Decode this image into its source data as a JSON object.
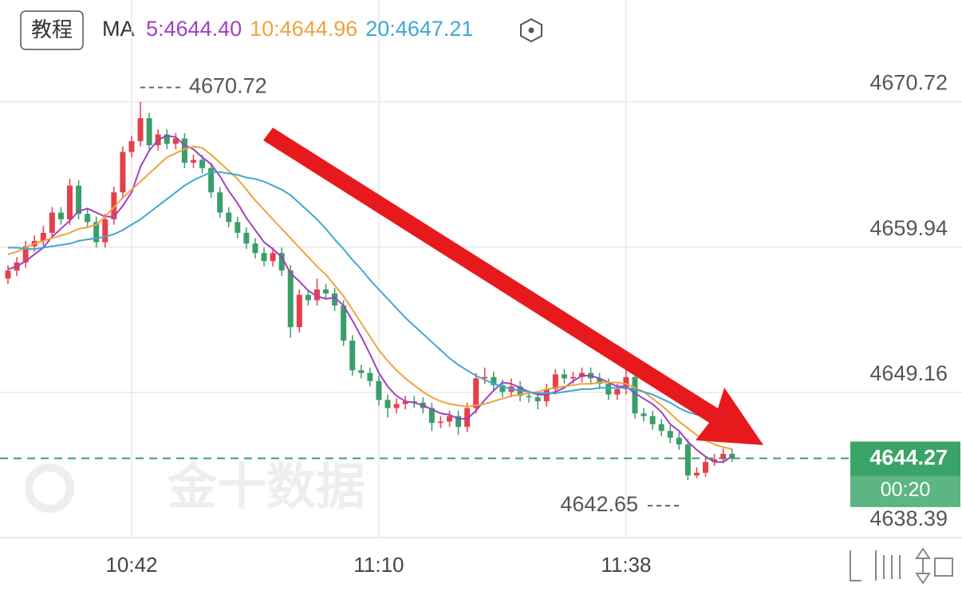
{
  "toolbar": {
    "button": "教程",
    "watermark": "金十数据"
  },
  "chart_data": {
    "type": "candlestick",
    "ma_label": "MA",
    "categories": [
      null,
      null,
      null,
      null,
      null,
      null,
      null,
      null,
      null,
      null,
      null,
      null,
      null,
      null,
      "10:42",
      null,
      null,
      null,
      null,
      null,
      null,
      null,
      null,
      null,
      null,
      null,
      null,
      null,
      null,
      null,
      null,
      null,
      null,
      null,
      null,
      null,
      null,
      null,
      null,
      null,
      null,
      null,
      "11:10",
      null,
      null,
      null,
      null,
      null,
      null,
      null,
      null,
      null,
      null,
      null,
      null,
      null,
      null,
      null,
      null,
      null,
      null,
      null,
      null,
      null,
      null,
      null,
      null,
      null,
      null,
      null,
      "11:38",
      null,
      null,
      null,
      null,
      null,
      null,
      null,
      null,
      null,
      null,
      null,
      null
    ],
    "candles": [
      [
        4657.6,
        4658.6,
        4657.2,
        4658.2
      ],
      [
        4658.2,
        4659.2,
        4657.8,
        4658.8
      ],
      [
        4658.8,
        4660.4,
        4658.4,
        4660.0
      ],
      [
        4660.0,
        4660.8,
        4659.6,
        4660.4
      ],
      [
        4660.4,
        4661.5,
        4660.0,
        4661.0
      ],
      [
        4661.0,
        4662.9,
        4660.6,
        4662.5
      ],
      [
        4662.5,
        4662.9,
        4661.6,
        4662.0
      ],
      [
        4662.0,
        4665.0,
        4661.6,
        4664.5
      ],
      [
        4664.5,
        4664.9,
        4662.0,
        4662.4
      ],
      [
        4662.4,
        4662.8,
        4661.4,
        4661.8
      ],
      [
        4661.8,
        4662.2,
        4659.9,
        4660.3
      ],
      [
        4660.3,
        4662.4,
        4659.9,
        4662.0
      ],
      [
        4662.0,
        4664.4,
        4661.6,
        4664.0
      ],
      [
        4664.0,
        4667.4,
        4663.6,
        4667.0
      ],
      [
        4667.0,
        4668.2,
        4666.6,
        4667.8
      ],
      [
        4667.8,
        4670.72,
        4667.4,
        4669.5
      ],
      [
        4669.5,
        4669.9,
        4667.1,
        4667.5
      ],
      [
        4667.5,
        4668.7,
        4667.1,
        4668.3
      ],
      [
        4668.3,
        4668.7,
        4667.2,
        4667.6
      ],
      [
        4667.6,
        4668.4,
        4667.2,
        4668.0
      ],
      [
        4668.0,
        4668.4,
        4665.8,
        4666.2
      ],
      [
        4666.2,
        4666.8,
        4665.8,
        4666.4
      ],
      [
        4666.4,
        4666.8,
        4665.4,
        4665.8
      ],
      [
        4665.8,
        4666.2,
        4663.6,
        4664.0
      ],
      [
        4664.0,
        4664.4,
        4662.1,
        4662.5
      ],
      [
        4662.5,
        4662.9,
        4661.4,
        4661.8
      ],
      [
        4661.8,
        4662.2,
        4660.6,
        4661.0
      ],
      [
        4661.0,
        4661.4,
        4659.8,
        4660.2
      ],
      [
        4660.2,
        4660.6,
        4659.1,
        4659.5
      ],
      [
        4659.5,
        4659.9,
        4658.5,
        4658.9
      ],
      [
        4658.9,
        4659.9,
        4658.5,
        4659.5
      ],
      [
        4659.5,
        4659.9,
        4657.8,
        4658.2
      ],
      [
        4658.2,
        4658.6,
        4653.2,
        4654.0
      ],
      [
        4654.0,
        4656.8,
        4653.6,
        4656.4
      ],
      [
        4656.4,
        4656.8,
        4655.6,
        4656.0
      ],
      [
        4656.0,
        4657.6,
        4655.6,
        4656.8
      ],
      [
        4656.8,
        4657.2,
        4656.1,
        4656.5
      ],
      [
        4656.5,
        4656.9,
        4655.2,
        4655.6
      ],
      [
        4655.6,
        4656.0,
        4652.6,
        4653.0
      ],
      [
        4653.0,
        4653.4,
        4650.4,
        4650.8
      ],
      [
        4650.8,
        4651.2,
        4650.2,
        4650.6
      ],
      [
        4650.6,
        4651.0,
        4649.6,
        4650.0
      ],
      [
        4650.0,
        4650.4,
        4648.2,
        4648.6
      ],
      [
        4648.6,
        4649.0,
        4647.3,
        4648.0
      ],
      [
        4648.0,
        4648.7,
        4647.6,
        4648.3
      ],
      [
        4648.3,
        4648.9,
        4647.9,
        4648.5
      ],
      [
        4648.5,
        4648.9,
        4648.0,
        4648.4
      ],
      [
        4648.4,
        4648.8,
        4647.6,
        4648.0
      ],
      [
        4648.0,
        4648.4,
        4646.3,
        4646.9
      ],
      [
        4646.9,
        4647.4,
        4646.5,
        4647.0
      ],
      [
        4647.0,
        4647.8,
        4646.6,
        4647.4
      ],
      [
        4647.4,
        4647.8,
        4646.0,
        4646.6
      ],
      [
        4646.6,
        4648.4,
        4646.2,
        4648.0
      ],
      [
        4648.0,
        4650.6,
        4647.6,
        4650.2
      ],
      [
        4650.2,
        4651.0,
        4649.8,
        4650.3
      ],
      [
        4650.3,
        4650.7,
        4649.3,
        4649.7
      ],
      [
        4649.7,
        4650.1,
        4648.8,
        4649.2
      ],
      [
        4649.2,
        4650.2,
        4648.8,
        4649.6
      ],
      [
        4649.6,
        4650.0,
        4648.5,
        4648.9
      ],
      [
        4648.9,
        4649.3,
        4648.4,
        4648.8
      ],
      [
        4648.8,
        4649.2,
        4647.9,
        4648.5
      ],
      [
        4648.5,
        4649.8,
        4648.1,
        4649.4
      ],
      [
        4649.4,
        4650.9,
        4649.0,
        4650.5
      ],
      [
        4650.5,
        4650.9,
        4649.8,
        4650.2
      ],
      [
        4650.2,
        4650.7,
        4649.8,
        4650.3
      ],
      [
        4650.3,
        4651.0,
        4649.9,
        4650.6
      ],
      [
        4650.6,
        4651.0,
        4649.8,
        4650.2
      ],
      [
        4650.2,
        4650.6,
        4649.4,
        4649.8
      ],
      [
        4649.8,
        4650.2,
        4648.6,
        4649.0
      ],
      [
        4649.0,
        4649.8,
        4648.6,
        4649.4
      ],
      [
        4649.4,
        4650.9,
        4649.0,
        4650.3
      ],
      [
        4650.3,
        4650.7,
        4647.2,
        4647.6
      ],
      [
        4647.6,
        4648.0,
        4647.0,
        4647.4
      ],
      [
        4647.4,
        4647.8,
        4646.4,
        4646.8
      ],
      [
        4646.8,
        4647.2,
        4645.9,
        4646.3
      ],
      [
        4646.3,
        4646.7,
        4645.4,
        4645.8
      ],
      [
        4645.8,
        4646.2,
        4644.9,
        4645.3
      ],
      [
        4645.3,
        4645.7,
        4642.65,
        4643.0
      ],
      [
        4643.0,
        4643.6,
        4642.8,
        4643.2
      ],
      [
        4643.2,
        4644.4,
        4642.9,
        4644.0
      ],
      [
        4644.0,
        4644.6,
        4643.7,
        4644.2
      ],
      [
        4644.2,
        4645.0,
        4643.9,
        4644.6
      ],
      [
        4644.6,
        4645.0,
        4644.0,
        4644.27
      ]
    ],
    "up_color": "#e5404a",
    "down_color": "#3a9e68",
    "series": [
      {
        "name": "5:4644.40",
        "color": "#a23fc4",
        "values": [
          4658.3,
          4658.5,
          4658.9,
          4659.4,
          4659.9,
          4660.7,
          4661.3,
          4661.9,
          4662.6,
          4662.8,
          4662.5,
          4662.2,
          4662.2,
          4663.0,
          4664.0,
          4665.9,
          4667.1,
          4667.9,
          4668.2,
          4668.1,
          4667.5,
          4667.2,
          4666.6,
          4666.1,
          4665.2,
          4664.1,
          4663.2,
          4662.1,
          4661.2,
          4660.3,
          4659.8,
          4659.2,
          4658.0,
          4657.4,
          4656.7,
          4656.3,
          4656.1,
          4656.2,
          4655.6,
          4654.5,
          4653.3,
          4652.0,
          4650.6,
          4649.6,
          4648.9,
          4648.5,
          4648.4,
          4648.2,
          4647.9,
          4647.6,
          4647.5,
          4647.2,
          4647.2,
          4647.8,
          4648.6,
          4649.3,
          4649.9,
          4649.8,
          4649.5,
          4649.2,
          4649.0,
          4649.0,
          4649.2,
          4649.5,
          4650.0,
          4650.4,
          4650.4,
          4650.2,
          4649.9,
          4649.6,
          4649.6,
          4649.1,
          4648.7,
          4648.3,
          4647.7,
          4646.8,
          4646.3,
          4645.5,
          4644.9,
          4644.4,
          4644.0,
          4644.0,
          4644.4
        ]
      },
      {
        "name": "10:4644.96",
        "color": "#f0a23e",
        "values": [
          4659.4,
          4659.6,
          4659.9,
          4660.2,
          4660.4,
          4660.6,
          4660.8,
          4661.0,
          4661.3,
          4661.4,
          4661.6,
          4662.2,
          4662.9,
          4663.6,
          4664.2,
          4664.8,
          4665.4,
          4666.0,
          4666.6,
          4666.9,
          4667.2,
          4667.4,
          4667.3,
          4666.8,
          4666.2,
          4665.6,
          4665.0,
          4664.2,
          4663.4,
          4662.7,
          4662.0,
          4661.3,
          4660.6,
          4659.9,
          4659.2,
          4658.5,
          4657.9,
          4657.1,
          4656.3,
          4655.3,
          4654.3,
          4653.3,
          4652.3,
          4651.5,
          4650.8,
          4650.2,
          4649.7,
          4649.2,
          4648.8,
          4648.5,
          4648.3,
          4648.2,
          4648.1,
          4648.2,
          4648.3,
          4648.5,
          4648.7,
          4648.9,
          4649.0,
          4649.1,
          4649.2,
          4649.4,
          4649.5,
          4649.6,
          4649.7,
          4649.8,
          4649.8,
          4649.9,
          4649.9,
          4649.9,
          4649.8,
          4649.5,
          4649.2,
          4648.7,
          4648.2,
          4647.6,
          4647.0,
          4646.5,
          4646.0,
          4645.6,
          4645.3,
          4645.1,
          4644.96
        ]
      },
      {
        "name": "20:4647.21",
        "color": "#3fa8d2",
        "values": [
          4659.9,
          4659.9,
          4659.8,
          4659.8,
          4659.9,
          4660.0,
          4660.1,
          4660.2,
          4660.4,
          4660.5,
          4660.6,
          4660.7,
          4660.9,
          4661.2,
          4661.6,
          4662.0,
          4662.5,
          4663.0,
          4663.5,
          4664.0,
          4664.5,
          4664.9,
          4665.2,
          4665.5,
          4665.5,
          4665.4,
          4665.3,
          4665.1,
          4665.0,
          4664.8,
          4664.5,
          4664.2,
          4663.8,
          4663.2,
          4662.6,
          4662.0,
          4661.3,
          4660.5,
          4659.8,
          4659.0,
          4658.3,
          4657.5,
          4656.8,
          4656.1,
          4655.4,
          4654.7,
          4654.1,
          4653.5,
          4652.9,
          4652.3,
          4651.7,
          4651.2,
          4650.8,
          4650.4,
          4650.1,
          4649.8,
          4649.6,
          4649.4,
          4649.3,
          4649.2,
          4649.1,
          4649.1,
          4649.1,
          4649.2,
          4649.3,
          4649.4,
          4649.4,
          4649.5,
          4649.5,
          4649.5,
          4649.5,
          4649.4,
          4649.2,
          4649.0,
          4648.7,
          4648.4,
          4648.0,
          4647.7,
          4647.5,
          4647.4,
          4647.3,
          4647.25,
          4647.21
        ]
      }
    ],
    "ylim": [
      4638.39,
      4673.3
    ],
    "yticks": [
      4670.72,
      4659.94,
      4649.16,
      4638.39
    ],
    "grid": true,
    "high_label": 4670.72,
    "low_label": 4642.65,
    "last_price": 4644.27,
    "countdown": "00:20"
  }
}
